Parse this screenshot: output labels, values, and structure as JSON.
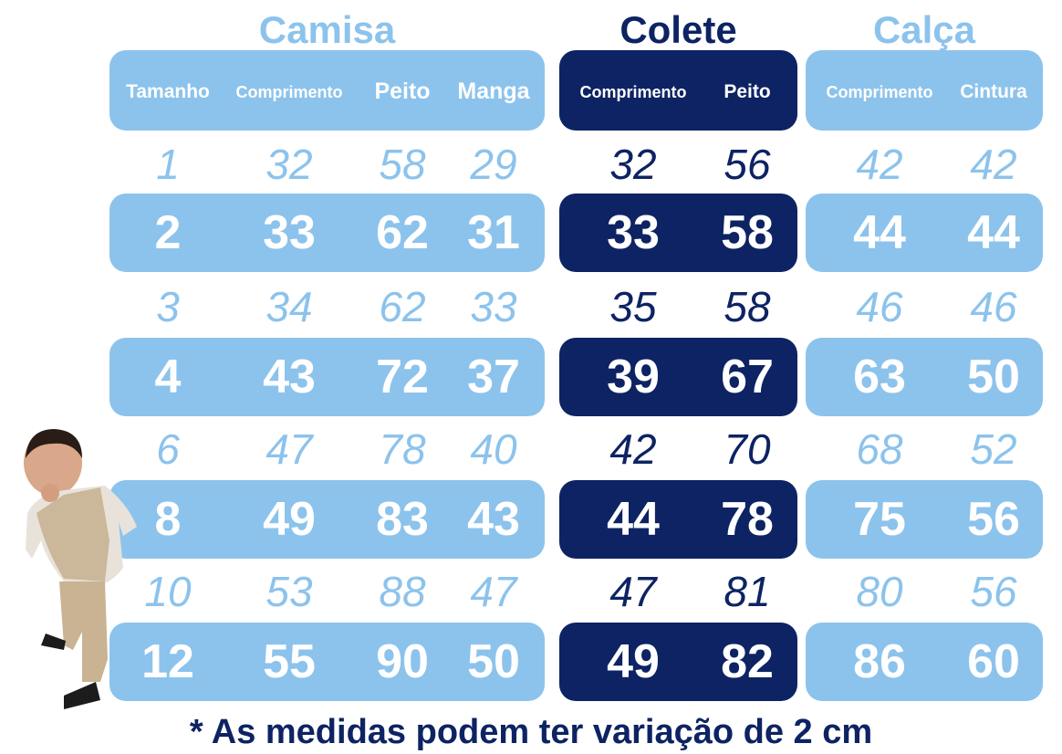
{
  "colors": {
    "light_blue": "#8CC3EC",
    "navy": "#0D2363"
  },
  "sections": [
    {
      "title": "Camisa",
      "headers": [
        "Tamanho",
        "Comprimento",
        "Peito",
        "Manga"
      ]
    },
    {
      "title": "Colete",
      "headers": [
        "Comprimento",
        "Peito"
      ]
    },
    {
      "title": "Calça",
      "headers": [
        "Comprimento",
        "Cintura"
      ]
    }
  ],
  "rows": [
    {
      "camisa": [
        "1",
        "32",
        "58",
        "29"
      ],
      "colete": [
        "32",
        "56"
      ],
      "calca": [
        "42",
        "42"
      ]
    },
    {
      "camisa": [
        "2",
        "33",
        "62",
        "31"
      ],
      "colete": [
        "33",
        "58"
      ],
      "calca": [
        "44",
        "44"
      ]
    },
    {
      "camisa": [
        "3",
        "34",
        "62",
        "33"
      ],
      "colete": [
        "35",
        "58"
      ],
      "calca": [
        "46",
        "46"
      ]
    },
    {
      "camisa": [
        "4",
        "43",
        "72",
        "37"
      ],
      "colete": [
        "39",
        "67"
      ],
      "calca": [
        "63",
        "50"
      ]
    },
    {
      "camisa": [
        "6",
        "47",
        "78",
        "40"
      ],
      "colete": [
        "42",
        "70"
      ],
      "calca": [
        "68",
        "52"
      ]
    },
    {
      "camisa": [
        "8",
        "49",
        "83",
        "43"
      ],
      "colete": [
        "44",
        "78"
      ],
      "calca": [
        "75",
        "56"
      ]
    },
    {
      "camisa": [
        "10",
        "53",
        "88",
        "47"
      ],
      "colete": [
        "47",
        "81"
      ],
      "calca": [
        "80",
        "56"
      ]
    },
    {
      "camisa": [
        "12",
        "55",
        "90",
        "50"
      ],
      "colete": [
        "49",
        "82"
      ],
      "calca": [
        "86",
        "60"
      ]
    }
  ],
  "footnote": "* As medidas podem ter variação de 2 cm",
  "image": {
    "subject": "child-model-photo"
  }
}
